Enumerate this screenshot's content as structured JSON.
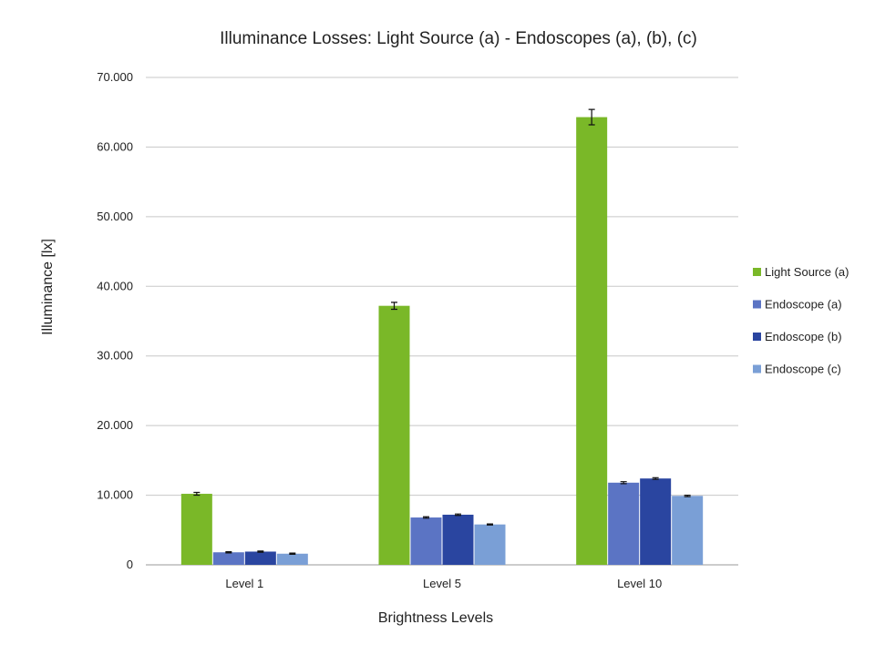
{
  "chart_data": {
    "type": "bar",
    "title": "Illuminance Losses: Light Source (a) - Endoscopes (a), (b), (c)",
    "xlabel": "Brightness Levels",
    "ylabel": "Illuminance [lx]",
    "categories": [
      "Level 1",
      "Level 5",
      "Level 10"
    ],
    "ylim": [
      0,
      70000
    ],
    "yticks": [
      0,
      10000,
      20000,
      30000,
      40000,
      50000,
      60000,
      70000
    ],
    "ytick_labels": [
      "0",
      "10.000",
      "20.000",
      "30.000",
      "40.000",
      "50.000",
      "60.000",
      "70.000"
    ],
    "grid": true,
    "legend_position": "right",
    "series": [
      {
        "name": "Light Source (a)",
        "color": "#7ab828",
        "values": [
          10200,
          37200,
          64300
        ],
        "errors": [
          200,
          500,
          1100
        ]
      },
      {
        "name": "Endoscope (a)",
        "color": "#5b74c4",
        "values": [
          1800,
          6800,
          11800
        ],
        "errors": [
          80,
          100,
          150
        ]
      },
      {
        "name": "Endoscope (b)",
        "color": "#2a45a0",
        "values": [
          1900,
          7200,
          12400
        ],
        "errors": [
          80,
          100,
          120
        ]
      },
      {
        "name": "Endoscope (c)",
        "color": "#7a9fd6",
        "values": [
          1600,
          5800,
          9900
        ],
        "errors": [
          80,
          80,
          100
        ]
      }
    ]
  }
}
